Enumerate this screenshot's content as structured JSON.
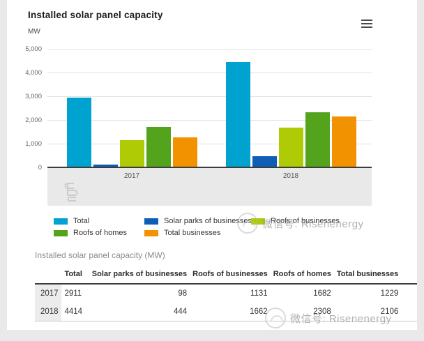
{
  "header": {
    "title": "Installed solar panel capacity",
    "unit": "MW"
  },
  "chart_data": {
    "type": "bar",
    "title": "Installed solar panel capacity",
    "ylabel": "MW",
    "xlabel": "",
    "categories": [
      "2017",
      "2018"
    ],
    "series": [
      {
        "name": "Total",
        "color": "#00a2d0",
        "values": [
          2911,
          4414
        ]
      },
      {
        "name": "Solar parks of businesses",
        "color": "#0f5db4",
        "values": [
          98,
          444
        ]
      },
      {
        "name": "Roofs of businesses",
        "color": "#afcb05",
        "values": [
          1131,
          1662
        ]
      },
      {
        "name": "Roofs of homes",
        "color": "#53a31d",
        "values": [
          1682,
          2308
        ]
      },
      {
        "name": "Total businesses",
        "color": "#f39200",
        "values": [
          1229,
          2106
        ]
      }
    ],
    "ylim": [
      0,
      5000
    ],
    "yticks": [
      0,
      1000,
      2000,
      3000,
      4000,
      5000
    ],
    "ytick_labels": [
      "0",
      "1,000",
      "2,000",
      "3,000",
      "4,000",
      "5,000"
    ],
    "grid": true,
    "legend_position": "bottom"
  },
  "legend": {
    "columns": [
      [
        {
          "label": "Total",
          "color": "#00a2d0"
        },
        {
          "label": "Roofs of homes",
          "color": "#53a31d"
        }
      ],
      [
        {
          "label": "Solar parks of businesses",
          "color": "#0f5db4"
        },
        {
          "label": "Total businesses",
          "color": "#f39200"
        }
      ],
      [
        {
          "label": "Roofs of businesses",
          "color": "#afcb05"
        }
      ]
    ]
  },
  "table": {
    "title": "Installed solar panel capacity (MW)",
    "columns": [
      "",
      "Total",
      "Solar parks of businesses",
      "Roofs of businesses",
      "Roofs of homes",
      "Total businesses"
    ],
    "rows": [
      {
        "year": "2017",
        "values": [
          "2911",
          "98",
          "1131",
          "1682",
          "1229"
        ]
      },
      {
        "year": "2018",
        "values": [
          "4414",
          "444",
          "1662",
          "2308",
          "2106"
        ]
      }
    ]
  },
  "watermark": {
    "text": "微信号: Risenenergy"
  },
  "icons": {
    "menu": "hamburger-menu-icon",
    "cbs_logo": "cbs-logo-icon",
    "watermark_logo": "watermark-badge-icon"
  }
}
